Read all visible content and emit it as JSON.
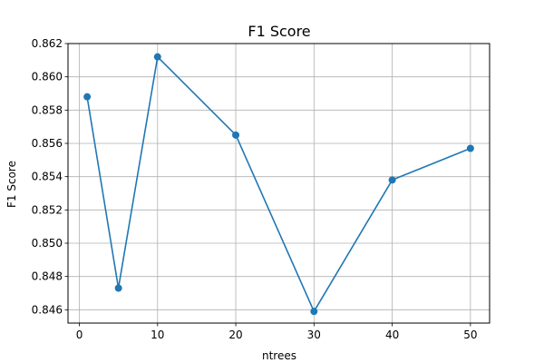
{
  "chart_data": {
    "type": "line",
    "title": "F1 Score",
    "xlabel": "ntrees",
    "ylabel": "F1 Score",
    "x": [
      1,
      5,
      10,
      20,
      30,
      40,
      50
    ],
    "series": [
      {
        "values": [
          0.8588,
          0.8473,
          0.8612,
          0.8565,
          0.8459,
          0.8538,
          0.8557
        ],
        "color": "#1f77b4",
        "marker": "circle"
      }
    ],
    "xlim": [
      -1.45,
      52.45
    ],
    "ylim": [
      0.8452,
      0.862
    ],
    "xticks": [
      0,
      10,
      20,
      30,
      40,
      50
    ],
    "yticks": [
      0.846,
      0.848,
      0.85,
      0.852,
      0.854,
      0.856,
      0.858,
      0.86,
      0.862
    ],
    "ytick_labels": [
      "0.846",
      "0.848",
      "0.850",
      "0.852",
      "0.854",
      "0.856",
      "0.858",
      "0.860",
      "0.862"
    ],
    "grid": true,
    "grid_color": "#b0b0b0"
  }
}
